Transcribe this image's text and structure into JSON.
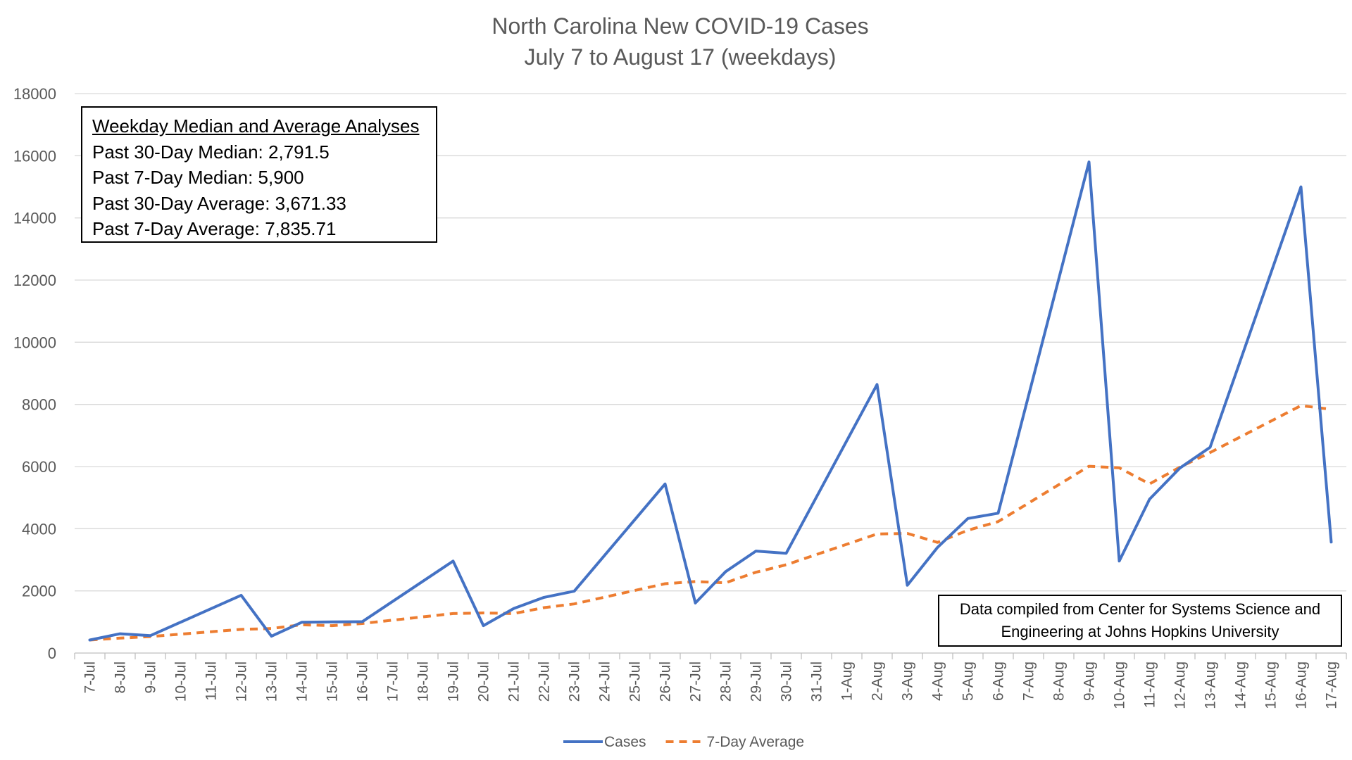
{
  "chart_data": {
    "type": "line",
    "title": "North Carolina New COVID-19 Cases",
    "subtitle": "July 7 to August 17 (weekdays)",
    "xlabel": "",
    "ylabel": "",
    "ylim": [
      0,
      18000
    ],
    "yticks": [
      "0",
      "2000",
      "4000",
      "6000",
      "8000",
      "10000",
      "12000",
      "14000",
      "16000",
      "18000"
    ],
    "grid": "horizontal",
    "legend_position": "bottom",
    "categories": [
      "7-Jul",
      "8-Jul",
      "9-Jul",
      "10-Jul",
      "11-Jul",
      "12-Jul",
      "13-Jul",
      "14-Jul",
      "15-Jul",
      "16-Jul",
      "17-Jul",
      "18-Jul",
      "19-Jul",
      "20-Jul",
      "21-Jul",
      "22-Jul",
      "23-Jul",
      "24-Jul",
      "25-Jul",
      "26-Jul",
      "27-Jul",
      "28-Jul",
      "29-Jul",
      "30-Jul",
      "31-Jul",
      "1-Aug",
      "2-Aug",
      "3-Aug",
      "4-Aug",
      "5-Aug",
      "6-Aug",
      "7-Aug",
      "8-Aug",
      "9-Aug",
      "10-Aug",
      "11-Aug",
      "12-Aug",
      "13-Aug",
      "14-Aug",
      "15-Aug",
      "16-Aug",
      "17-Aug"
    ],
    "series": [
      {
        "name": "Cases",
        "color": "#4472C4",
        "style": "solid",
        "points": [
          {
            "x": "7-Jul",
            "y": 420
          },
          {
            "x": "8-Jul",
            "y": 620
          },
          {
            "x": "9-Jul",
            "y": 560
          },
          {
            "x": "12-Jul",
            "y": 1860
          },
          {
            "x": "13-Jul",
            "y": 540
          },
          {
            "x": "14-Jul",
            "y": 990
          },
          {
            "x": "15-Jul",
            "y": 1000
          },
          {
            "x": "16-Jul",
            "y": 1010
          },
          {
            "x": "19-Jul",
            "y": 2960
          },
          {
            "x": "20-Jul",
            "y": 880
          },
          {
            "x": "21-Jul",
            "y": 1430
          },
          {
            "x": "22-Jul",
            "y": 1790
          },
          {
            "x": "23-Jul",
            "y": 1990
          },
          {
            "x": "26-Jul",
            "y": 5440
          },
          {
            "x": "27-Jul",
            "y": 1610
          },
          {
            "x": "28-Jul",
            "y": 2620
          },
          {
            "x": "29-Jul",
            "y": 3280
          },
          {
            "x": "30-Jul",
            "y": 3210
          },
          {
            "x": "2-Aug",
            "y": 8640
          },
          {
            "x": "3-Aug",
            "y": 2180
          },
          {
            "x": "4-Aug",
            "y": 3400
          },
          {
            "x": "5-Aug",
            "y": 4330
          },
          {
            "x": "6-Aug",
            "y": 4500
          },
          {
            "x": "9-Aug",
            "y": 15800
          },
          {
            "x": "10-Aug",
            "y": 2960
          },
          {
            "x": "11-Aug",
            "y": 4950
          },
          {
            "x": "12-Aug",
            "y": 5950
          },
          {
            "x": "13-Aug",
            "y": 6620
          },
          {
            "x": "16-Aug",
            "y": 15000
          },
          {
            "x": "17-Aug",
            "y": 3570
          }
        ]
      },
      {
        "name": "7-Day Average",
        "color": "#ED7D31",
        "style": "dashed",
        "points": [
          {
            "x": "7-Jul",
            "y": 420
          },
          {
            "x": "8-Jul",
            "y": 480
          },
          {
            "x": "9-Jul",
            "y": 530
          },
          {
            "x": "12-Jul",
            "y": 760
          },
          {
            "x": "13-Jul",
            "y": 790
          },
          {
            "x": "14-Jul",
            "y": 910
          },
          {
            "x": "15-Jul",
            "y": 880
          },
          {
            "x": "16-Jul",
            "y": 950
          },
          {
            "x": "19-Jul",
            "y": 1270
          },
          {
            "x": "20-Jul",
            "y": 1290
          },
          {
            "x": "21-Jul",
            "y": 1270
          },
          {
            "x": "22-Jul",
            "y": 1460
          },
          {
            "x": "23-Jul",
            "y": 1580
          },
          {
            "x": "26-Jul",
            "y": 2230
          },
          {
            "x": "27-Jul",
            "y": 2300
          },
          {
            "x": "28-Jul",
            "y": 2260
          },
          {
            "x": "29-Jul",
            "y": 2600
          },
          {
            "x": "30-Jul",
            "y": 2840
          },
          {
            "x": "2-Aug",
            "y": 3830
          },
          {
            "x": "3-Aug",
            "y": 3850
          },
          {
            "x": "4-Aug",
            "y": 3560
          },
          {
            "x": "5-Aug",
            "y": 3950
          },
          {
            "x": "6-Aug",
            "y": 4230
          },
          {
            "x": "9-Aug",
            "y": 6010
          },
          {
            "x": "10-Aug",
            "y": 5960
          },
          {
            "x": "11-Aug",
            "y": 5440
          },
          {
            "x": "12-Aug",
            "y": 5980
          },
          {
            "x": "13-Aug",
            "y": 6450
          },
          {
            "x": "16-Aug",
            "y": 7960
          },
          {
            "x": "17-Aug",
            "y": 7840
          }
        ]
      }
    ]
  },
  "stats_box": {
    "heading": "Weekday Median and Average Analyses",
    "lines": [
      "Past 30-Day Median: 2,791.5",
      "Past 7-Day Median: 5,900",
      "Past 30-Day Average: 3,671.33",
      "Past 7-Day Average: 7,835.71"
    ]
  },
  "source_note": {
    "line1": "Data compiled from Center for Systems Science and",
    "line2": "Engineering at Johns Hopkins University"
  }
}
